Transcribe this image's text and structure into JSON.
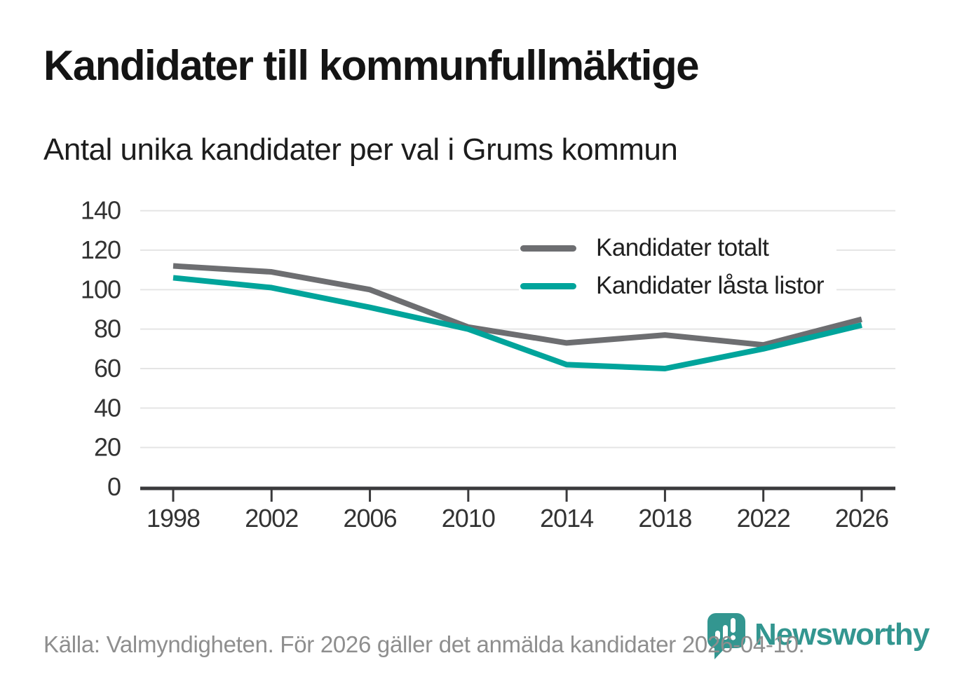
{
  "header": {
    "title": "Kandidater till kommunfullmäktige",
    "subtitle": "Antal unika kandidater per val i Grums kommun"
  },
  "chart_data": {
    "type": "line",
    "x": [
      1998,
      2002,
      2006,
      2010,
      2014,
      2018,
      2022,
      2026
    ],
    "series": [
      {
        "name": "Kandidater totalt",
        "color": "#6d6e71",
        "values": [
          112,
          109,
          100,
          81,
          73,
          77,
          72,
          85
        ]
      },
      {
        "name": "Kandidater låsta listor",
        "color": "#00a49b",
        "values": [
          106,
          101,
          91,
          80,
          62,
          60,
          70,
          82
        ]
      }
    ],
    "ylim": [
      0,
      140
    ],
    "ytick_step": 20,
    "yticks": [
      0,
      20,
      40,
      60,
      80,
      100,
      120,
      140
    ],
    "grid": "horizontal",
    "legend_position": "inside-top-right"
  },
  "footer": {
    "source": "Källa: Valmyndigheten. För 2026 gäller det anmälda kandidater 2026-04-10.",
    "brand": "Newsworthy"
  },
  "colors": {
    "series_total": "#6d6e71",
    "series_locked": "#00a49b",
    "axis": "#3a3a3c",
    "gridline": "#e5e5e5",
    "tick_text": "#333333",
    "title_text": "#141414",
    "source_text": "#8e8e8e",
    "logo_teal": "#339690"
  }
}
